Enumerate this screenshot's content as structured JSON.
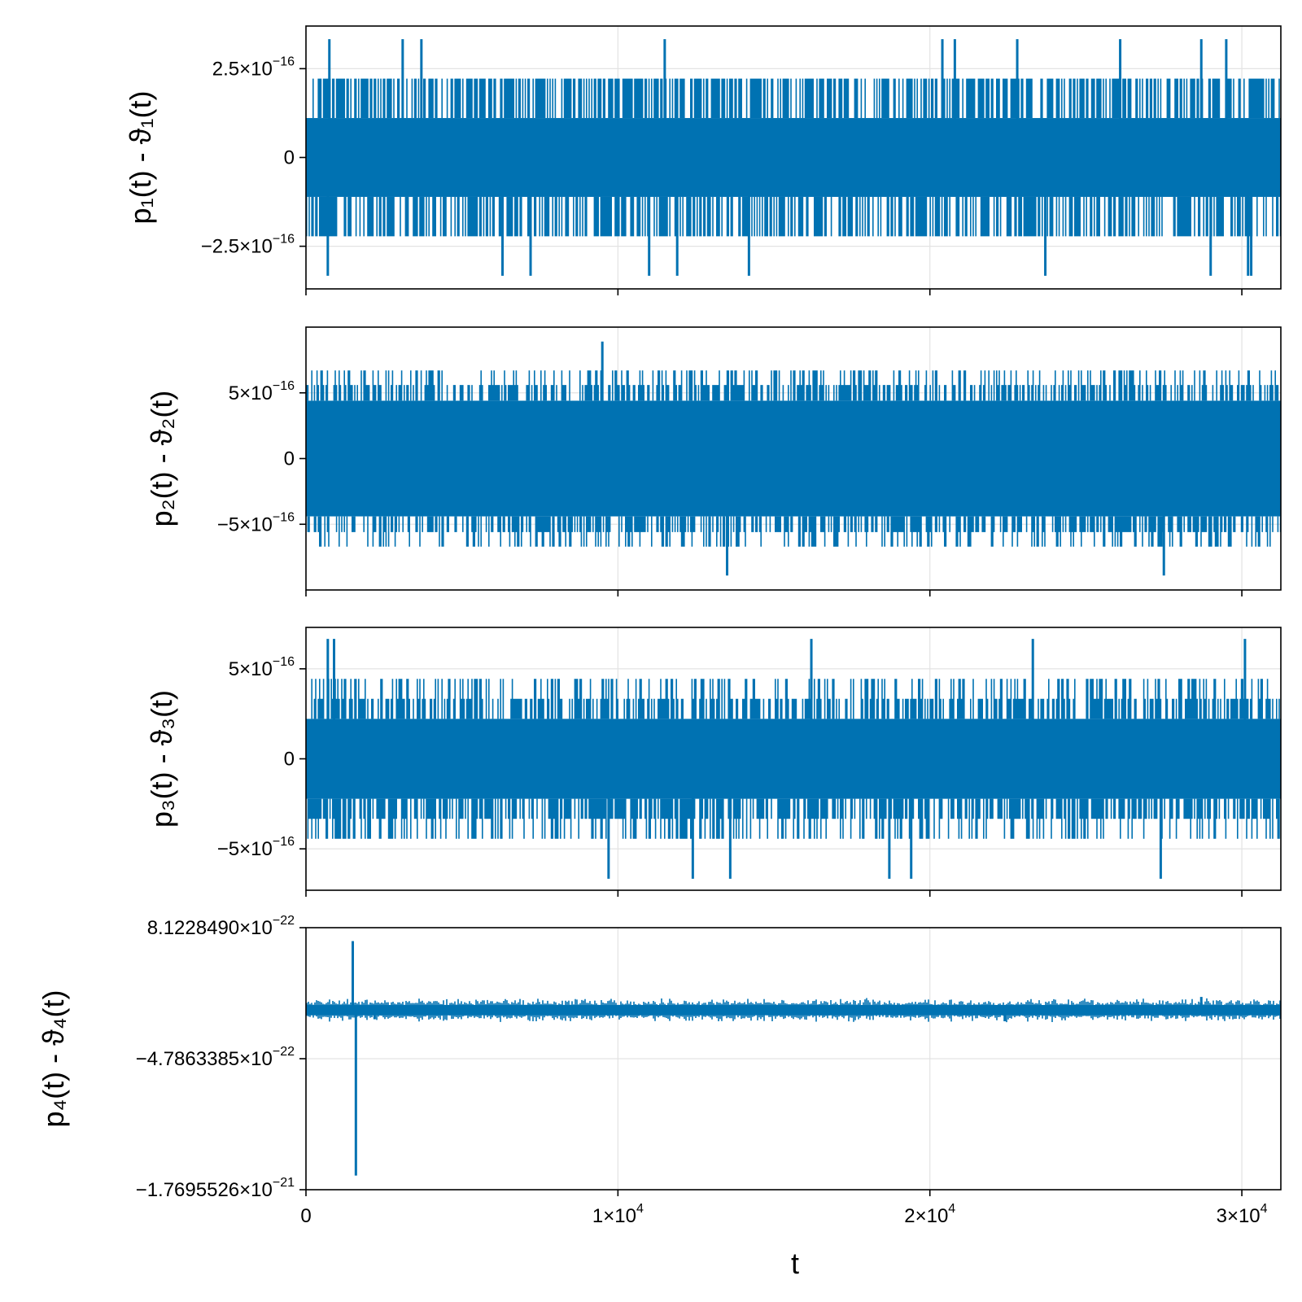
{
  "colors": {
    "series": "#0072b2",
    "grid": "#e3e3e3",
    "frame": "#000000"
  },
  "chart_data": {
    "type": "line",
    "xlabel": "t",
    "xlim": [
      0,
      31250
    ],
    "xticks": [
      {
        "value": 0,
        "label": "0",
        "exp": ""
      },
      {
        "value": 10000,
        "label": "1×10",
        "exp": "4"
      },
      {
        "value": 20000,
        "label": "2×10",
        "exp": "4"
      },
      {
        "value": 30000,
        "label": "3×10",
        "exp": "4"
      }
    ],
    "panels": [
      {
        "ylabel": "p₁(t) - ϑ₁(t)",
        "ylim": [
          -3.7e-16,
          3.7e-16
        ],
        "yticks": [
          {
            "value": 2.5e-16,
            "label": "2.5×10",
            "exp": "−16"
          },
          {
            "value": 0,
            "label": "0",
            "exp": ""
          },
          {
            "value": -2.5e-16,
            "label": "−2.5×10",
            "exp": "−16"
          }
        ],
        "levels": [
          -3.33e-16,
          -2.22e-16,
          -1.11e-16,
          0,
          1.11e-16,
          2.22e-16,
          3.33e-16
        ],
        "band": [
          -1.11e-16,
          1.11e-16
        ],
        "spikes": [
          {
            "x": 700,
            "y": -3.33e-16
          },
          {
            "x": 6300,
            "y": -3.33e-16
          },
          {
            "x": 7200,
            "y": -3.33e-16
          },
          {
            "x": 11000,
            "y": -3.33e-16
          },
          {
            "x": 11900,
            "y": -3.33e-16
          },
          {
            "x": 14200,
            "y": -3.33e-16
          },
          {
            "x": 23700,
            "y": -3.33e-16
          },
          {
            "x": 29000,
            "y": -3.33e-16
          },
          {
            "x": 30200,
            "y": -3.33e-16
          },
          {
            "x": 30300,
            "y": -3.33e-16
          },
          {
            "x": 750,
            "y": 3.33e-16
          },
          {
            "x": 3100,
            "y": 3.33e-16
          },
          {
            "x": 3700,
            "y": 3.33e-16
          },
          {
            "x": 11500,
            "y": 3.33e-16
          },
          {
            "x": 20400,
            "y": 3.33e-16
          },
          {
            "x": 20800,
            "y": 3.33e-16
          },
          {
            "x": 22800,
            "y": 3.33e-16
          },
          {
            "x": 26100,
            "y": 3.33e-16
          },
          {
            "x": 28700,
            "y": 3.33e-16
          },
          {
            "x": 29500,
            "y": 3.33e-16
          }
        ]
      },
      {
        "ylabel": "p₂(t) - ϑ₂(t)",
        "ylim": [
          -1e-15,
          1e-15
        ],
        "yticks": [
          {
            "value": 5e-16,
            "label": "5×10",
            "exp": "−16"
          },
          {
            "value": 0,
            "label": "0",
            "exp": ""
          },
          {
            "value": -5e-16,
            "label": "−5×10",
            "exp": "−16"
          }
        ],
        "levels": [
          -8.9e-16,
          -6.7e-16,
          -5.6e-16,
          -4.4e-16,
          0,
          4.4e-16,
          5.6e-16,
          6.7e-16,
          8.9e-16
        ],
        "band": [
          -4.4e-16,
          4.4e-16
        ],
        "spikes": [
          {
            "x": 9500,
            "y": 8.9e-16
          },
          {
            "x": 13500,
            "y": -8.9e-16
          },
          {
            "x": 27500,
            "y": -8.9e-16
          }
        ]
      },
      {
        "ylabel": "p₃(t) - ϑ₃(t)",
        "ylim": [
          -7.3e-16,
          7.3e-16
        ],
        "yticks": [
          {
            "value": 5e-16,
            "label": "5×10",
            "exp": "−16"
          },
          {
            "value": 0,
            "label": "0",
            "exp": ""
          },
          {
            "value": -5e-16,
            "label": "−5×10",
            "exp": "−16"
          }
        ],
        "levels": [
          -6.66e-16,
          -5.55e-16,
          -4.44e-16,
          -3.33e-16,
          -2.22e-16,
          0,
          2.22e-16,
          3.33e-16,
          4.44e-16,
          5.55e-16,
          6.66e-16
        ],
        "band": [
          -2.22e-16,
          2.22e-16
        ],
        "spikes": [
          {
            "x": 700,
            "y": 6.66e-16
          },
          {
            "x": 900,
            "y": 6.66e-16
          },
          {
            "x": 16200,
            "y": 6.66e-16
          },
          {
            "x": 23300,
            "y": 6.66e-16
          },
          {
            "x": 30100,
            "y": 6.66e-16
          },
          {
            "x": 9700,
            "y": -6.66e-16
          },
          {
            "x": 12400,
            "y": -6.66e-16
          },
          {
            "x": 13600,
            "y": -6.66e-16
          },
          {
            "x": 18700,
            "y": -6.66e-16
          },
          {
            "x": 19400,
            "y": -6.66e-16
          },
          {
            "x": 27400,
            "y": -6.66e-16
          }
        ]
      },
      {
        "ylabel": "p₄(t) - ϑ₄(t)",
        "ylim": [
          -1.7695526e-21,
          8.122849e-22
        ],
        "yticks": [
          {
            "value": 8.122849e-22,
            "label": "8.1228490×10",
            "exp": "−22"
          },
          {
            "value": -4.7863385e-22,
            "label": "−4.7863385×10",
            "exp": "−22"
          },
          {
            "value": -1.7695526e-21,
            "label": "−1.7695526×10",
            "exp": "−21"
          }
        ],
        "levels": [],
        "band": [
          -5e-23,
          5e-23
        ],
        "center": 0,
        "spikes": [
          {
            "x": 1500,
            "y": 6.8e-22
          },
          {
            "x": 1600,
            "y": -1.63e-21
          },
          {
            "x": 28700,
            "y": 1.3e-22
          },
          {
            "x": 2200,
            "y": -9e-23
          },
          {
            "x": 22400,
            "y": -1.1e-22
          }
        ]
      }
    ]
  }
}
